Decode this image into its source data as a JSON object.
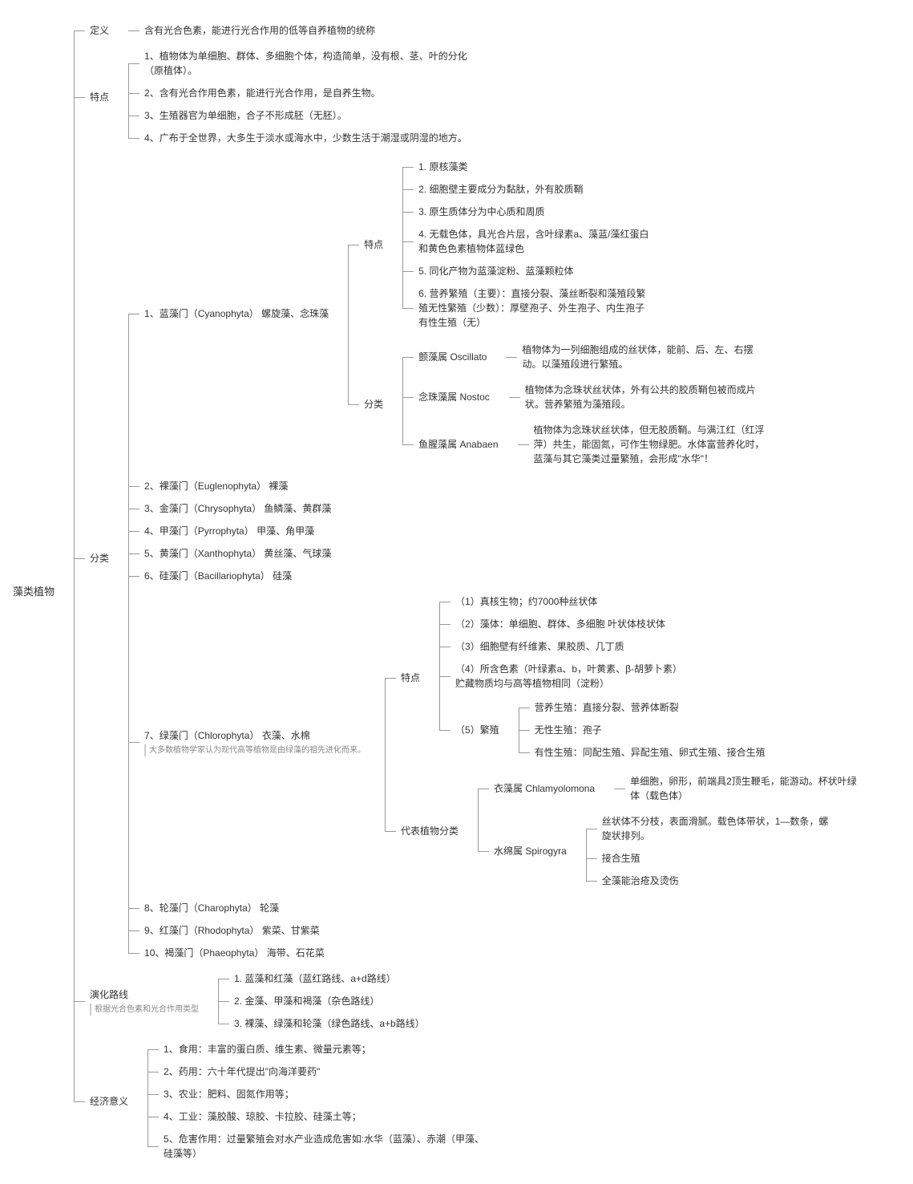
{
  "root": "藻类植物",
  "definition_label": "定义",
  "definition_text": "含有光合色素，能进行光合作用的低等自养植物的统称",
  "features_label": "特点",
  "features": [
    "1、植物体为单细胞、群体、多细胞个体，构造简单，没有根、茎、叶的分化（原植体）。",
    "2、含有光合作用色素，能进行光合作用，是自养生物。",
    "3、生殖器官为单细胞，合子不形成胚（无胚）。",
    "4、广布于全世界，大多生于淡水或海水中，少数生活于潮湿或阴湿的地方。"
  ],
  "classify_label": "分类",
  "phyla": [
    "1、蓝藻门（Cyanophyta）  螺旋藻、念珠藻",
    "2、裸藻门（Euglenophyta）  裸藻",
    "3、金藻门（Chrysophyta）  鱼鳞藻、黄群藻",
    "4、甲藻门（Pyrrophyta）  甲藻、角甲藻",
    "5、黄藻门（Xanthophyta）  黄丝藻、气球藻",
    "6、硅藻门（Bacillariophyta）  硅藻",
    "7、绿藻门（Chlorophyta）  衣藻、水棉",
    "8、轮藻门（Charophyta）  轮藻",
    "9、红藻门（Rhodophyta）  紫菜、甘紫菜",
    "10、褐藻门（Phaeophyta）  海带、石花菜"
  ],
  "phylum7_sub": "大多数植物学家认为现代高等植物是由绿藻的祖先进化而来。",
  "cyano_feat_label": "特点",
  "cyano_features": [
    "1. 原核藻类",
    "2. 细胞壁主要成分为黏肽，外有胶质鞘",
    "3. 原生质体分为中心质和周质",
    "4. 无载色体，具光合片层，含叶绿素a、藻蓝/藻红蛋白和黄色色素植物体蓝绿色",
    "5. 同化产物为蓝藻淀粉、蓝藻颗粒体",
    "6. 营养繁殖（主要）：直接分裂、藻丝断裂和藻殖段繁殖无性繁殖（少数）：厚壁孢子、外生孢子、内生孢子有性生殖（无）"
  ],
  "cyano_class_label": "分类",
  "cyano_genera": [
    {
      "name": "颤藻属 Oscillato",
      "desc": "植物体为一列细胞组成的丝状体，能前、后、左、右摆动。以藻殖段进行繁殖。"
    },
    {
      "name": "念珠藻属 Nostoc",
      "desc": "植物体为念珠状丝状体，外有公共的胶质鞘包被而成片状。营养繁殖为藻殖段。"
    },
    {
      "name": "鱼腥藻属 Anabaen",
      "desc": "植物体为念珠状丝状体，但无胶质鞘。与满江红（红浮萍）共生，能固氮，可作生物绿肥。水体富营养化时，蓝藻与其它藻类过量繁殖，会形成\"水华\"！"
    }
  ],
  "chloro_feat_label": "特点",
  "chloro_features": [
    "（1）真核生物；约7000种丝状体",
    "（2）藻体：单细胞、群体、多细胞 叶状体枝状体",
    "（3）细胞壁有纤维素、果胶质、几丁质",
    "（4）所含色素（叶绿素a、b，叶黄素、β-胡萝卜素）贮藏物质均与高等植物相同（淀粉）"
  ],
  "chloro_reprod_label": "（5）繁殖",
  "chloro_reprod": [
    "营养生殖：直接分裂、营养体断裂",
    "无性生殖：孢子",
    "有性生殖：同配生殖、异配生殖、卵式生殖、接合生殖"
  ],
  "chloro_rep_label": "代表植物分类",
  "chloro_reps": {
    "chlamy_name": "衣藻属 Chlamyolomona",
    "chlamy_desc": "单细胞，卵形，前端具2顶生鞭毛，能游动。杯状叶绿体（载色体）",
    "spiro_name": "水绵属 Spirogyra",
    "spiro_items": [
      "丝状体不分枝，表面滑腻。载色体带状，1—数条，螺旋状排列。",
      "接合生殖",
      "全藻能治疮及烫伤"
    ]
  },
  "evolution_label": "演化路线",
  "evolution_sub": "根据光合色素和光合作用类型",
  "evolution_items": [
    "1. 蓝藻和红藻（蓝红路线、a+d路线）",
    "2. 金藻、甲藻和褐藻（杂色路线）",
    "3. 裸藻、绿藻和轮藻（绿色路线、a+b路线）"
  ],
  "economy_label": "经济意义",
  "economy_items": [
    "1、食用：丰富的蛋白质、维生素、微量元素等；",
    "2、药用：六十年代提出\"向海洋要药\"",
    "3、农业：肥料、固氮作用等；",
    "4、工业：藻胶酸、琼胶、卡拉胶、硅藻土等；",
    "5、危害作用：过量繁殖会对水产业造成危害如:水华（蓝藻）、赤潮（甲藻、硅藻等）"
  ]
}
